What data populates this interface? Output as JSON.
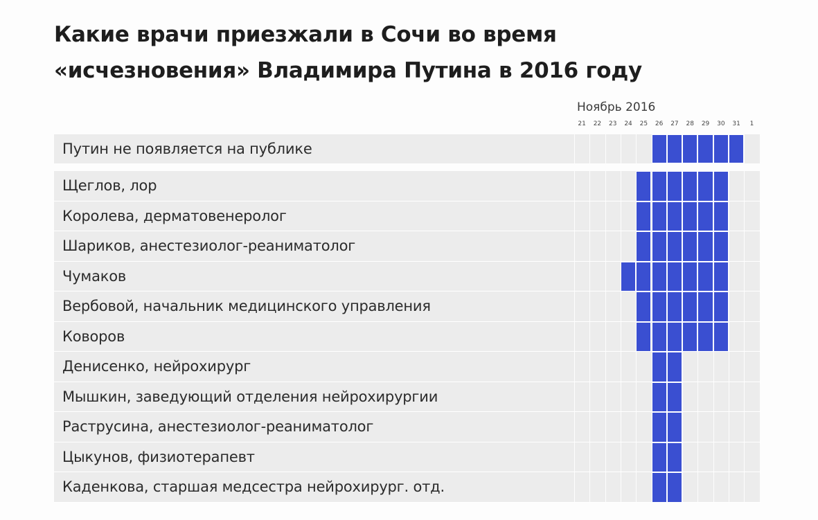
{
  "title": {
    "line1": "Какие врачи приезжали в Сочи во время",
    "line2": "«исчезновения» Владимира Путина в 2016 году"
  },
  "chart_data": {
    "type": "gantt",
    "period_label": "Ноябрь 2016",
    "days": [
      "21",
      "22",
      "23",
      "24",
      "25",
      "26",
      "27",
      "28",
      "29",
      "30",
      "31",
      "1"
    ],
    "colors": {
      "bar": "#3a4fd1",
      "row_bg": "#ececec"
    },
    "rows": [
      {
        "label": "Путин не появляется на публике",
        "start": "26",
        "end": "31"
      },
      {
        "label": "Щеглов, лор",
        "start": "25",
        "end": "30"
      },
      {
        "label": "Королева, дерматовенеролог",
        "start": "25",
        "end": "30"
      },
      {
        "label": "Шариков, анестезиолог-реаниматолог",
        "start": "25",
        "end": "30"
      },
      {
        "label": "Чумаков",
        "start": "24",
        "end": "30"
      },
      {
        "label": "Вербовой, начальник медицинского управления",
        "start": "25",
        "end": "30"
      },
      {
        "label": "Коворов",
        "start": "25",
        "end": "30"
      },
      {
        "label": "Денисенко, нейрохирург",
        "start": "26",
        "end": "27"
      },
      {
        "label": "Мышкин, заведующий отделения нейрохирургии",
        "start": "26",
        "end": "27"
      },
      {
        "label": "Раструсина, анестезиолог-реаниматолог",
        "start": "26",
        "end": "27"
      },
      {
        "label": "Цыкунов, физиотерапевт",
        "start": "26",
        "end": "27"
      },
      {
        "label": "Каденкова, старшая медсестра нейрохирург. отд.",
        "start": "26",
        "end": "27"
      }
    ]
  }
}
